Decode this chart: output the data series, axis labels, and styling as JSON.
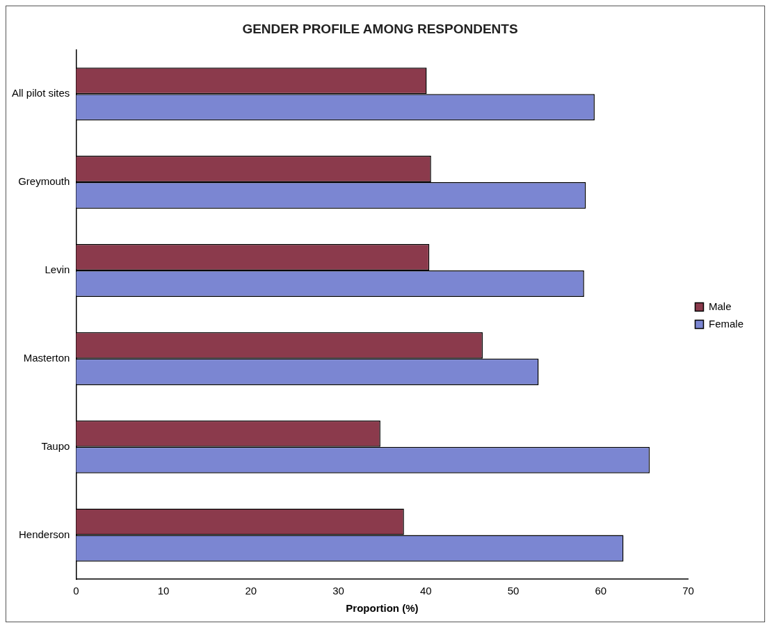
{
  "chart_data": {
    "type": "bar",
    "orientation": "horizontal",
    "title": "GENDER PROFILE AMONG RESPONDENTS",
    "xlabel": "Proportion (%)",
    "categories": [
      "All pilot sites",
      "Greymouth",
      "Levin",
      "Masterton",
      "Taupo",
      "Henderson"
    ],
    "series": [
      {
        "name": "Male",
        "color": "#8b3a4c",
        "values": [
          40.1,
          40.6,
          40.4,
          46.5,
          34.8,
          37.5
        ]
      },
      {
        "name": "Female",
        "color": "#7b86d2",
        "values": [
          59.3,
          58.3,
          58.1,
          52.9,
          65.6,
          62.6
        ]
      }
    ],
    "xlim": [
      0,
      70
    ],
    "xticks": [
      0,
      10,
      20,
      30,
      40,
      50,
      60,
      70
    ],
    "grid": false,
    "legend": "right"
  }
}
